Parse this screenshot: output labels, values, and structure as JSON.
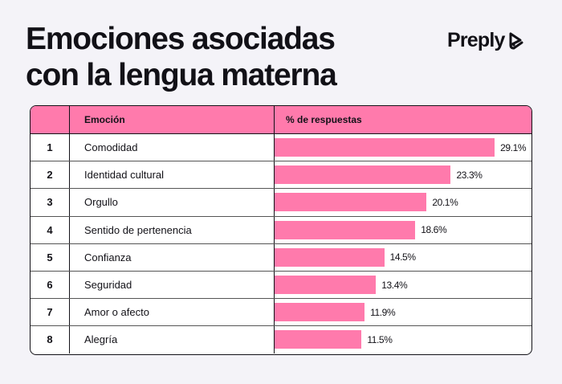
{
  "title_line1": "Emociones asociadas",
  "title_line2": "con la lengua materna",
  "brand": "Preply",
  "colors": {
    "accent": "#ff7aac",
    "background": "#f4f3f8",
    "text": "#121117"
  },
  "chart_data": {
    "type": "bar",
    "orientation": "horizontal",
    "headers": [
      "",
      "Emoción",
      "% de respuestas"
    ],
    "ranks": [
      "1",
      "2",
      "3",
      "4",
      "5",
      "6",
      "7",
      "8"
    ],
    "categories": [
      "Comodidad",
      "Identidad cultural",
      "Orgullo",
      "Sentido de pertenencia",
      "Confianza",
      "Seguridad",
      "Amor o afecto",
      "Alegría"
    ],
    "values": [
      29.1,
      23.3,
      20.1,
      18.6,
      14.5,
      13.4,
      11.9,
      11.5
    ],
    "labels": [
      "29.1%",
      "23.3%",
      "20.1%",
      "18.6%",
      "14.5%",
      "13.4%",
      "11.9%",
      "11.5%"
    ],
    "unit": "%"
  }
}
